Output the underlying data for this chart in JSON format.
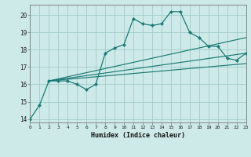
{
  "xlabel": "Humidex (Indice chaleur)",
  "xlim": [
    0,
    23
  ],
  "ylim": [
    13.8,
    20.6
  ],
  "xticks": [
    0,
    1,
    2,
    3,
    4,
    5,
    6,
    7,
    8,
    9,
    10,
    11,
    12,
    13,
    14,
    15,
    16,
    17,
    18,
    19,
    20,
    21,
    22,
    23
  ],
  "yticks": [
    14,
    15,
    16,
    17,
    18,
    19,
    20
  ],
  "bg_color": "#ceeae8",
  "grid_color": "#a0ccca",
  "line_color": "#1a7a75",
  "main_line": {
    "x": [
      0,
      1,
      2,
      3,
      4,
      5,
      6,
      7,
      8,
      9,
      10,
      11,
      12,
      13,
      14,
      15,
      16,
      17,
      18,
      19,
      20,
      21,
      22,
      23
    ],
    "y": [
      14.0,
      14.8,
      16.2,
      16.2,
      16.2,
      16.0,
      15.7,
      16.0,
      17.8,
      18.1,
      18.3,
      19.8,
      19.5,
      19.4,
      19.5,
      20.2,
      20.2,
      19.0,
      18.7,
      18.2,
      18.2,
      17.5,
      17.4,
      17.8
    ]
  },
  "trend_lines": [
    {
      "x": [
        2,
        23
      ],
      "y": [
        16.2,
        18.7
      ]
    },
    {
      "x": [
        2,
        23
      ],
      "y": [
        16.2,
        17.8
      ]
    },
    {
      "x": [
        2,
        23
      ],
      "y": [
        16.2,
        17.2
      ]
    }
  ]
}
